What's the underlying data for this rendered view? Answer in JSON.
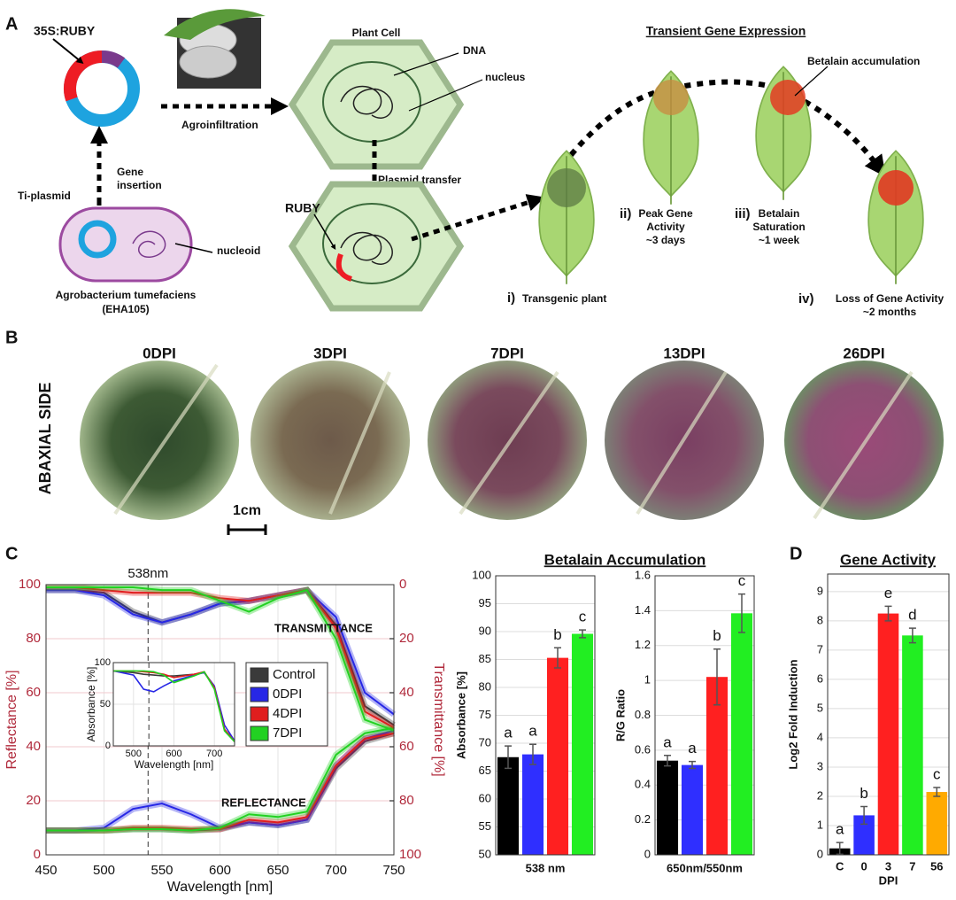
{
  "panel_labels": [
    "A",
    "B",
    "C",
    "D"
  ],
  "diagram": {
    "plasmid": "35S:RUBY",
    "agroinfiltration": "Agroinfiltration",
    "plant_cell": "Plant Cell",
    "dna": "DNA",
    "nucleus": "nucleus",
    "gene_insertion": [
      "Gene",
      "insertion"
    ],
    "ti_plasmid": "Ti-plasmid",
    "nucleoid": "nucleoid",
    "bacterium": [
      "Agrobacterium tumefaciens",
      "(EHA105)"
    ],
    "plasmid_transfer": "Plasmid transfer",
    "ruby": "RUBY",
    "expression_title": "Transient Gene Expression",
    "betalain": "Betalain accumulation",
    "stages": [
      {
        "num": "i)",
        "lines": [
          "Transgenic plant"
        ]
      },
      {
        "num": "ii)",
        "lines": [
          "Peak Gene",
          "Activity",
          "~3 days"
        ]
      },
      {
        "num": "iii)",
        "lines": [
          "Betalain",
          "Saturation",
          "~1 week"
        ]
      },
      {
        "num": "iv)",
        "lines": [
          "Loss of Gene Activity",
          "~2 months"
        ]
      }
    ]
  },
  "photos": {
    "side": "ABAXIAL SIDE",
    "labels": [
      "0DPI",
      "3DPI",
      "7DPI",
      "13DPI",
      "26DPI"
    ],
    "scale": "1cm"
  },
  "chart_data": [
    {
      "type": "line",
      "xlabel": "Wavelength [nm]",
      "ylabel": "Reflectance [%]",
      "y2label": "Transmittance [%]",
      "xlim": [
        450,
        750
      ],
      "xticks": [
        450,
        500,
        550,
        600,
        650,
        700,
        750
      ],
      "ylim": [
        0,
        100
      ],
      "yticks": [
        0,
        20,
        40,
        60,
        80,
        100
      ],
      "y2lim": [
        100,
        0
      ],
      "y2ticks": [
        0,
        20,
        40,
        60,
        80,
        100
      ],
      "grid": true,
      "legend": "center",
      "labels": [
        "TRANSMITTANCE",
        "REFLECTANCE"
      ],
      "annotations": [
        {
          "x": 538,
          "label": "538nm"
        }
      ],
      "x": [
        450,
        475,
        500,
        525,
        550,
        575,
        600,
        625,
        650,
        675,
        700,
        725,
        750
      ],
      "series": [
        {
          "name": "Control",
          "color": "#3a3a3a",
          "values": [
            9,
            9,
            9,
            9.5,
            9.5,
            9,
            9.5,
            12,
            11,
            13,
            32,
            42,
            45
          ]
        },
        {
          "name": "0DPI",
          "color": "#2727e6",
          "values": [
            9,
            9,
            10,
            17,
            19,
            15,
            10,
            12,
            11,
            13,
            33,
            43,
            46
          ]
        },
        {
          "name": "4DPI",
          "color": "#e01e1e",
          "values": [
            9,
            9,
            9,
            10,
            10,
            9.5,
            9.5,
            13,
            12,
            14,
            33,
            43,
            45
          ]
        },
        {
          "name": "7DPI",
          "color": "#22d122",
          "values": [
            9,
            9,
            9,
            9.5,
            9.5,
            9,
            10,
            15,
            14,
            16,
            37,
            45,
            47
          ]
        },
        {
          "color": "#3a3a3a",
          "axis": "y2",
          "values": [
            2,
            2,
            3,
            10,
            14,
            11,
            7,
            6,
            4,
            2,
            15,
            45,
            52
          ]
        },
        {
          "color": "#2727e6",
          "axis": "y2",
          "values": [
            2,
            2,
            4,
            11,
            14,
            11,
            7,
            6,
            4,
            2,
            12,
            40,
            48
          ]
        },
        {
          "color": "#e01e1e",
          "axis": "y2",
          "values": [
            1,
            1,
            2,
            3,
            3,
            3,
            5,
            6,
            4,
            2,
            16,
            47,
            53
          ]
        },
        {
          "color": "#22d122",
          "axis": "y2",
          "values": [
            1,
            1,
            1,
            1,
            2,
            2,
            6,
            10,
            5,
            2,
            20,
            50,
            54
          ]
        }
      ]
    },
    {
      "type": "line",
      "xlabel": "Wavelength [nm]",
      "ylabel": "Absorbance [%]",
      "xlim": [
        450,
        750
      ],
      "xticks": [
        500,
        600,
        700
      ],
      "ylim": [
        0,
        100
      ],
      "yticks": [
        0,
        50,
        100
      ],
      "grid": true,
      "annotations": [
        {
          "x": 538
        }
      ],
      "x": [
        450,
        500,
        525,
        550,
        575,
        600,
        650,
        675,
        700,
        725,
        750
      ],
      "series": [
        {
          "color": "#3a3a3a",
          "values": [
            90,
            88,
            86,
            85,
            84,
            84,
            86,
            88,
            70,
            20,
            5
          ]
        },
        {
          "color": "#2727e6",
          "values": [
            90,
            85,
            68,
            65,
            72,
            78,
            85,
            88,
            72,
            25,
            6
          ]
        },
        {
          "color": "#e01e1e",
          "values": [
            90,
            90,
            89,
            88,
            86,
            82,
            86,
            89,
            70,
            20,
            5
          ]
        },
        {
          "color": "#22d122",
          "values": [
            90,
            90,
            90,
            89,
            85,
            76,
            84,
            89,
            68,
            18,
            5
          ]
        }
      ]
    },
    {
      "type": "bar",
      "title": "Betalain Accumulation",
      "xlabel": "538 nm",
      "ylabel": "Absorbance [%]",
      "ylim": [
        50,
        100
      ],
      "yticks": [
        50,
        55,
        60,
        65,
        70,
        75,
        80,
        85,
        90,
        95,
        100
      ],
      "grid": true,
      "values": [
        67.5,
        68,
        85.3,
        89.6
      ],
      "errors": [
        2,
        1.8,
        1.8,
        0.7
      ],
      "colors": [
        "#000000",
        "#2f2fff",
        "#ff2020",
        "#22ee22"
      ],
      "annotations": [
        "a",
        "a",
        "b",
        "c"
      ]
    },
    {
      "type": "bar",
      "xlabel": "650nm/550nm",
      "ylabel": "R/G Ratio",
      "ylim": [
        0,
        1.6
      ],
      "yticks": [
        0,
        0.2,
        0.4,
        0.6,
        0.8,
        1,
        1.2,
        1.4,
        1.6
      ],
      "grid": true,
      "values": [
        0.54,
        0.515,
        1.02,
        1.385
      ],
      "errors": [
        0.03,
        0.02,
        0.16,
        0.11
      ],
      "colors": [
        "#000000",
        "#2f2fff",
        "#ff2020",
        "#22ee22"
      ],
      "annotations": [
        "a",
        "a",
        "b",
        "c"
      ]
    },
    {
      "type": "bar",
      "title": "Gene Activity",
      "xlabel": "DPI",
      "ylabel": "Log2 Fold Induction",
      "ylim": [
        0,
        9.6
      ],
      "yticks": [
        0,
        1,
        2,
        3,
        4,
        5,
        6,
        7,
        8,
        9
      ],
      "grid": true,
      "categories": [
        "C",
        "0",
        "3",
        "7",
        "56"
      ],
      "values": [
        0.22,
        1.35,
        8.25,
        7.5,
        2.15
      ],
      "errors": [
        0.2,
        0.3,
        0.25,
        0.25,
        0.15
      ],
      "colors": [
        "#000000",
        "#2f2fff",
        "#ff2020",
        "#22ee22",
        "#ffaa00"
      ],
      "annotations": [
        "a",
        "b",
        "e",
        "d",
        "c"
      ]
    }
  ]
}
